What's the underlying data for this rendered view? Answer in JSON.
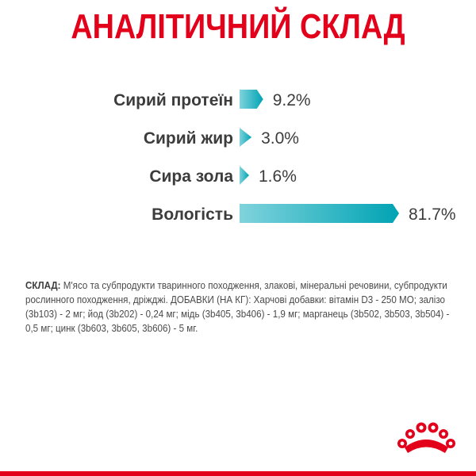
{
  "title": "АНАЛІТИЧНИЙ СКЛАД",
  "chart_data": {
    "type": "bar",
    "orientation": "horizontal",
    "categories": [
      "Сирий протеїн",
      "Сирий жир",
      "Сира зола",
      "Вологість"
    ],
    "values": [
      9.2,
      3.0,
      1.6,
      81.7
    ],
    "value_labels": [
      "9.2%",
      "3.0%",
      "1.6%",
      "81.7%"
    ],
    "unit": "%",
    "xlim": [
      0,
      81.7
    ],
    "grid": false,
    "bar_color_from": "#7fd3dc",
    "bar_color_to": "#00a3b4"
  },
  "composition": {
    "lead": "СКЛАД:",
    "text": " М'ясо та субпродукти тваринного походження, злакові, мінеральні речовини, субпродукти рослинного походження, дріжджі. ДОБАВКИ (НА КГ): Харчові добавки: вітамін D3 - 250 МО; залізо (3b103) - 2 мг; йод (3b202) - 0,24 мг; мідь (3b405, 3b406) - 1,9 мг; марганець (3b502, 3b503, 3b504) - 0,5 мг; цинк (3b603, 3b605, 3b606) - 5 мг."
  },
  "brand": {
    "logo_icon": "royal-canin-crown-icon",
    "accent": "#e2001a"
  }
}
